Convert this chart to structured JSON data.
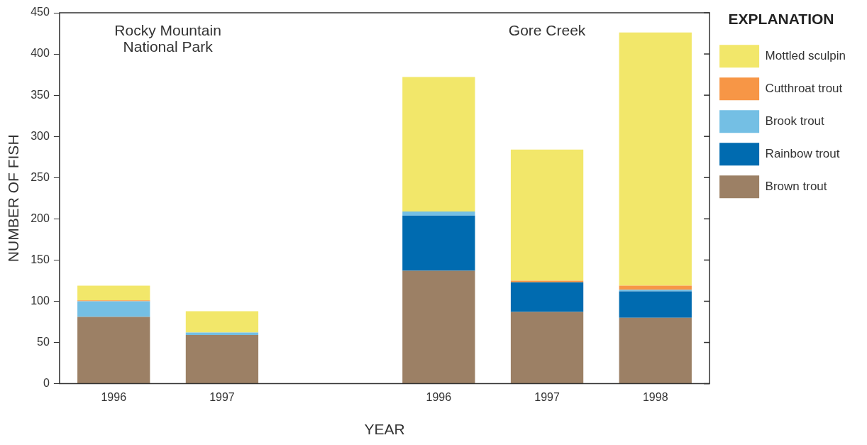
{
  "chart_data": {
    "type": "bar",
    "stacked": true,
    "xlabel": "YEAR",
    "ylabel": "NUMBER OF FISH",
    "legend_title": "EXPLANATION",
    "legend": "right",
    "categories": [
      "1996",
      "1997",
      null,
      "1996",
      "1997",
      "1998"
    ],
    "series": [
      {
        "name": "Brown trout",
        "color": "#9c8065",
        "values": [
          81,
          59,
          null,
          137,
          87,
          80
        ]
      },
      {
        "name": "Rainbow trout",
        "color": "#006bb0",
        "values": [
          0,
          0,
          null,
          67,
          36,
          32
        ]
      },
      {
        "name": "Brook trout",
        "color": "#74bfe4",
        "values": [
          19,
          3,
          null,
          5,
          0,
          2
        ]
      },
      {
        "name": "Cutthroat trout",
        "color": "#f79646",
        "values": [
          1,
          0,
          null,
          0,
          2,
          5
        ]
      },
      {
        "name": "Mottled sculpin",
        "color": "#f2e76a",
        "values": [
          18,
          26,
          null,
          163,
          159,
          307
        ]
      }
    ],
    "ylim": [
      0,
      450
    ],
    "yticks": [
      0,
      50,
      100,
      150,
      200,
      250,
      300,
      350,
      400,
      450
    ],
    "grid": false,
    "annotations": [
      "Rocky Mountain National Park",
      "Gore Creek"
    ]
  }
}
